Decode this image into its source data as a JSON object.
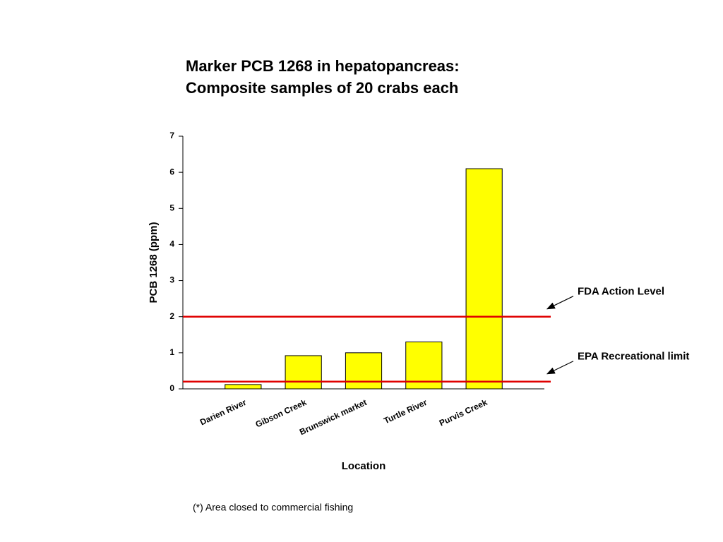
{
  "chart_data": {
    "type": "bar",
    "title": [
      "Marker PCB 1268 in hepatopancreas:",
      "Composite samples of 20 crabs each"
    ],
    "x_label": "Location",
    "y_label": "PCB 1268 (ppm)",
    "categories": [
      "Darien River",
      "Gibson Creek",
      "Brunswick market",
      "Turtle River",
      "Purvis Creek"
    ],
    "values": [
      0.12,
      0.92,
      1.0,
      1.3,
      6.1
    ],
    "color": "#ffff00",
    "ylim": [
      0,
      7
    ],
    "yticks": [
      0,
      1,
      2,
      3,
      4,
      5,
      6,
      7
    ],
    "reference_lines": [
      {
        "label": "FDA Action Level",
        "value": 2,
        "color": "#e00000"
      },
      {
        "label": "EPA Recreational limit",
        "value": 0.2,
        "color": "#e00000"
      }
    ],
    "footnote": "(*) Area closed to commercial fishing"
  }
}
